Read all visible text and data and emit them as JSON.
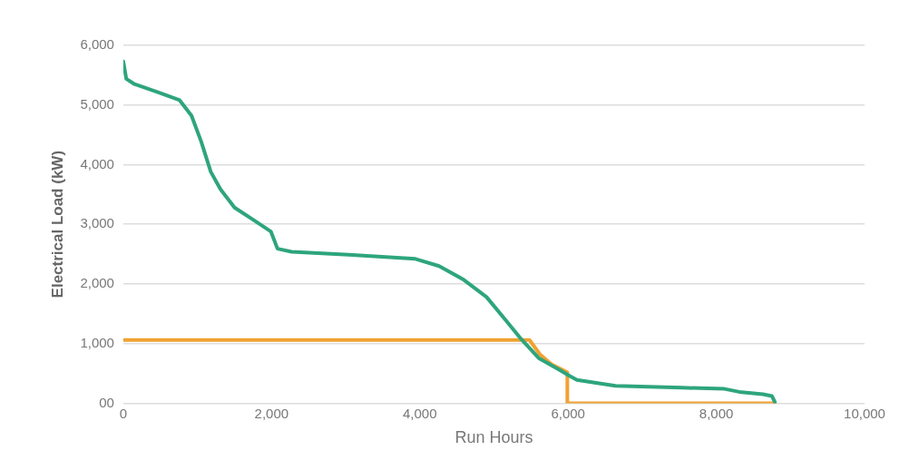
{
  "chart_data": {
    "type": "line",
    "xlabel": "Run Hours",
    "ylabel": "Electrical Load (kW)",
    "xlim": [
      0,
      10000
    ],
    "xticks": [
      {
        "value": 0,
        "label": "0"
      },
      {
        "value": 2000,
        "label": "2,000"
      },
      {
        "value": 4000,
        "label": "4,000"
      },
      {
        "value": 6000,
        "label": "6,000"
      },
      {
        "value": 8000,
        "label": "8,000"
      },
      {
        "value": 10000,
        "label": "10,000"
      }
    ],
    "ylim": [
      0,
      6000
    ],
    "yticks": [
      {
        "value": 0,
        "label": "00"
      },
      {
        "value": 1000,
        "label": "1,000"
      },
      {
        "value": 2000,
        "label": "2,000"
      },
      {
        "value": 3000,
        "label": "3,000"
      },
      {
        "value": 4000,
        "label": "4,000"
      },
      {
        "value": 5000,
        "label": "5,000"
      },
      {
        "value": 6000,
        "label": "6,000"
      }
    ],
    "grid": "y",
    "legend": false,
    "marker": "none",
    "line_style": "solid",
    "series": [
      {
        "color": "#2ea57c",
        "x": [
          0,
          40,
          150,
          475,
          760,
          920,
          1050,
          1180,
          1310,
          1500,
          1760,
          1990,
          2080,
          2270,
          3040,
          3940,
          4260,
          4580,
          4900,
          5160,
          5350,
          5610,
          5870,
          6030,
          6120,
          6640,
          7540,
          8110,
          8310,
          8630,
          8750,
          8790
        ],
        "values": [
          5730,
          5440,
          5350,
          5210,
          5080,
          4820,
          4390,
          3880,
          3590,
          3280,
          3070,
          2880,
          2590,
          2540,
          2490,
          2420,
          2300,
          2080,
          1780,
          1390,
          1100,
          750,
          570,
          450,
          390,
          290,
          260,
          240,
          190,
          150,
          120,
          20
        ]
      },
      {
        "color": "#f0a233",
        "x": [
          0,
          5480,
          5620,
          5780,
          5990,
          5990,
          8790
        ],
        "values": [
          1060,
          1060,
          820,
          650,
          520,
          0,
          0
        ]
      }
    ]
  }
}
